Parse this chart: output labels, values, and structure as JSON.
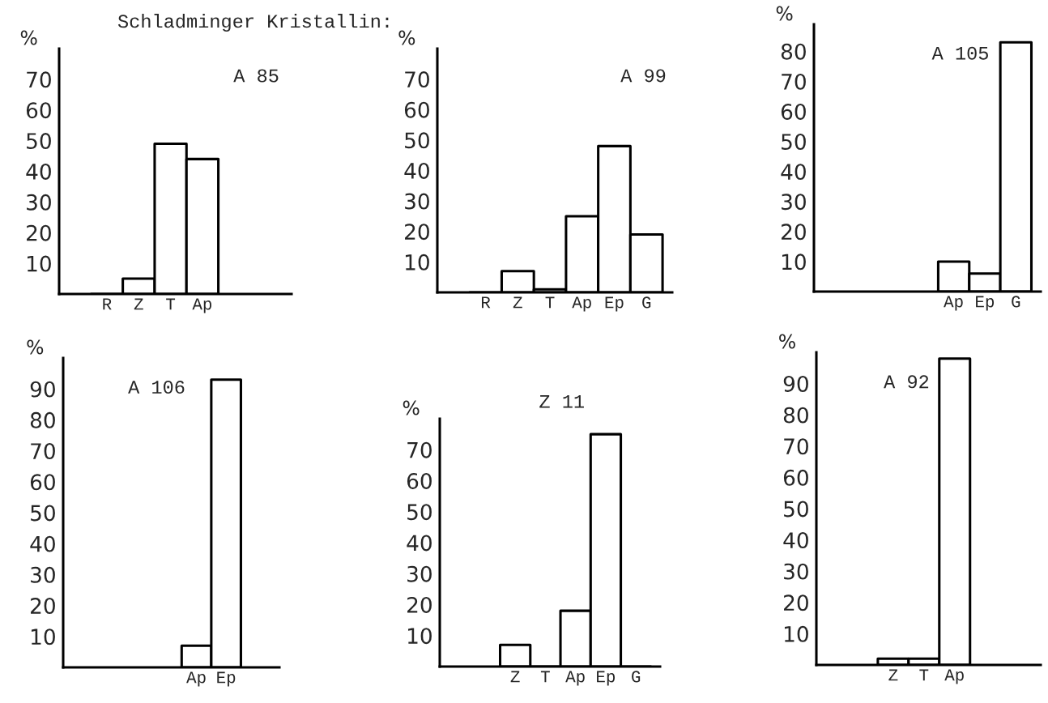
{
  "chart_data": [
    {
      "type": "bar",
      "title": "A 85",
      "ylabel": "%",
      "annotations": [
        "Schladminger Kristallin:"
      ],
      "categories": [
        null,
        "R",
        "Z",
        "T",
        "Ap",
        null,
        null
      ],
      "values": [
        null,
        0,
        5,
        49,
        44,
        null,
        null
      ],
      "color": "#ffffff",
      "ylim": [
        0,
        80
      ],
      "yticks": [
        10,
        20,
        30,
        40,
        50,
        60,
        70
      ],
      "grid": false,
      "legend": false
    },
    {
      "type": "bar",
      "title": "A 99",
      "ylabel": "%",
      "categories": [
        null,
        "R",
        "Z",
        "T",
        "Ap",
        "Ep",
        "G"
      ],
      "values": [
        null,
        0,
        7,
        1,
        25,
        48,
        19
      ],
      "color": "#ffffff",
      "ylim": [
        0,
        80
      ],
      "yticks": [
        10,
        20,
        30,
        40,
        50,
        60,
        70
      ],
      "grid": false,
      "legend": false
    },
    {
      "type": "bar",
      "title": "A 105",
      "ylabel": "%",
      "categories": [
        null,
        null,
        null,
        null,
        "Ap",
        "Ep",
        "G"
      ],
      "values": [
        null,
        null,
        null,
        null,
        10,
        6,
        83
      ],
      "color": "#ffffff",
      "ylim": [
        0,
        89
      ],
      "yticks": [
        10,
        20,
        30,
        40,
        50,
        60,
        70,
        80
      ],
      "grid": false,
      "legend": false
    },
    {
      "type": "bar",
      "title": "A 106",
      "ylabel": "%",
      "categories": [
        null,
        null,
        null,
        null,
        "Ap",
        "Ep",
        null
      ],
      "values": [
        null,
        null,
        null,
        null,
        7,
        93,
        null
      ],
      "color": "#ffffff",
      "ylim": [
        0,
        100
      ],
      "yticks": [
        10,
        20,
        30,
        40,
        50,
        60,
        70,
        80,
        90
      ],
      "grid": false,
      "legend": false
    },
    {
      "type": "bar",
      "title": "Z 11",
      "ylabel": "%",
      "categories": [
        null,
        null,
        "Z",
        "T",
        "Ap",
        "Ep",
        "G"
      ],
      "values": [
        null,
        null,
        7,
        0,
        18,
        75,
        0
      ],
      "color": "#ffffff",
      "ylim": [
        0,
        80
      ],
      "yticks": [
        10,
        20,
        30,
        40,
        50,
        60,
        70
      ],
      "grid": false,
      "legend": false
    },
    {
      "type": "bar",
      "title": "A 92",
      "ylabel": "%",
      "categories": [
        null,
        null,
        "Z",
        "T",
        "Ap",
        null,
        null
      ],
      "values": [
        null,
        null,
        2,
        2,
        98,
        null,
        null
      ],
      "color": "#ffffff",
      "ylim": [
        0,
        100
      ],
      "yticks": [
        10,
        20,
        30,
        40,
        50,
        60,
        70,
        80,
        90
      ],
      "grid": false,
      "legend": false
    }
  ]
}
